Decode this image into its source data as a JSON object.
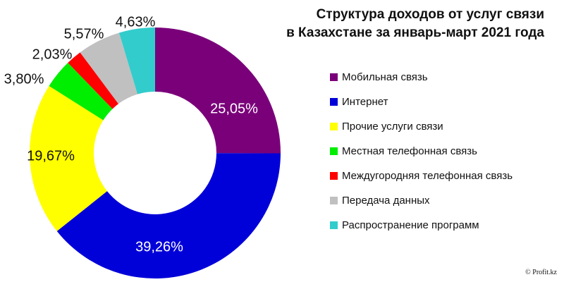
{
  "chart_data": {
    "type": "pie",
    "subtype": "donut",
    "title": "Структура доходов от услуг связи в Казахстане за январь-март 2021 года",
    "title_lines": [
      "Структура доходов от услуг связи",
      "в Казахстане за январь-март 2021 года"
    ],
    "legend_position": "right",
    "slices": [
      {
        "name": "Мобильная связь",
        "value": 25.05,
        "label": "25,05%",
        "color": "#7a007a"
      },
      {
        "name": "Интернет",
        "value": 39.26,
        "label": "39,26%",
        "color": "#0000d8"
      },
      {
        "name": "Прочие услуги связи",
        "value": 19.67,
        "label": "19,67%",
        "color": "#ffff00"
      },
      {
        "name": "Местная телефонная связь",
        "value": 3.8,
        "label": "3,80%",
        "color": "#00ee00"
      },
      {
        "name": "Междугородняя телефонная связь",
        "value": 2.03,
        "label": "2,03%",
        "color": "#ff0000"
      },
      {
        "name": "Передача данных",
        "value": 5.57,
        "label": "5,57%",
        "color": "#c0c0c0"
      },
      {
        "name": "Распространение программ",
        "value": 4.63,
        "label": "4,63%",
        "color": "#33cccc"
      }
    ]
  },
  "copyright": "© Profit.kz"
}
